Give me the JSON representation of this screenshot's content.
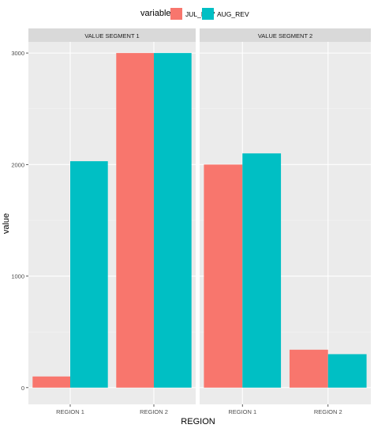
{
  "chart_data": {
    "type": "bar",
    "xlabel": "REGION",
    "ylabel": "value",
    "ylim": [
      -150,
      3100
    ],
    "yticks": [
      0,
      1000,
      2000,
      3000
    ],
    "grid": true,
    "legend": {
      "title": "variable",
      "position": "top",
      "items": [
        {
          "name": "JUL_REV",
          "color": "#F8766D"
        },
        {
          "name": "AUG_REV",
          "color": "#00BFC4"
        }
      ]
    },
    "facets": [
      {
        "label": "VALUE SEGMENT 1",
        "categories": [
          "REGION 1",
          "REGION 2"
        ],
        "series": [
          {
            "name": "JUL_REV",
            "values": [
              100,
              3000
            ]
          },
          {
            "name": "AUG_REV",
            "values": [
              2030,
              3000
            ]
          }
        ]
      },
      {
        "label": "VALUE SEGMENT 2",
        "categories": [
          "REGION 1",
          "REGION 2"
        ],
        "series": [
          {
            "name": "JUL_REV",
            "values": [
              2000,
              340
            ]
          },
          {
            "name": "AUG_REV",
            "values": [
              2100,
              300
            ]
          }
        ]
      }
    ],
    "colors": {
      "panel_bg": "#EBEBEB",
      "strip_bg": "#D9D9D9",
      "grid_major": "#FFFFFF",
      "text": "#4D4D4D"
    }
  }
}
